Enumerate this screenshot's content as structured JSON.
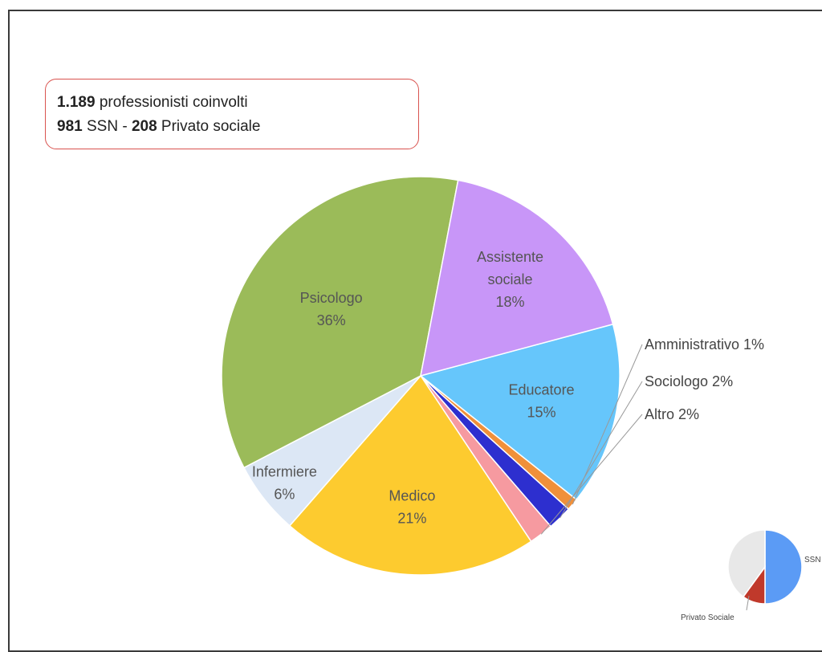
{
  "info": {
    "line1_bold": "1.189",
    "line1_text": " professionisti coinvolti",
    "line2_bold1": "981",
    "line2_text1": " SSN - ",
    "line2_bold2": "208",
    "line2_text2": " Privato sociale"
  },
  "chart_data": [
    {
      "type": "pie",
      "slices": [
        {
          "label": "Educatore",
          "value": 15,
          "value_label": "15%",
          "color": "#66c6fb"
        },
        {
          "label": "Amministrativo",
          "value": 1,
          "value_label": "1%",
          "color": "#f0903a"
        },
        {
          "label": "Sociologo",
          "value": 2,
          "value_label": "2%",
          "color": "#2d2fcf"
        },
        {
          "label": "Altro",
          "value": 2,
          "value_label": "2%",
          "color": "#f69aa0"
        },
        {
          "label": "Medico",
          "value": 21,
          "value_label": "21%",
          "color": "#fdcb2f"
        },
        {
          "label": "Infermiere",
          "value": 6,
          "value_label": "6%",
          "color": "#dce7f5"
        },
        {
          "label": "Psicologo",
          "value": 36,
          "value_label": "36%",
          "color": "#9bbb59"
        },
        {
          "label": "Assistente sociale",
          "value": 18,
          "value_label": "18%",
          "color": "#c896f8"
        }
      ]
    },
    {
      "type": "pie",
      "slices": [
        {
          "label": "SSN",
          "value": 50,
          "color": "#5b9bf5"
        },
        {
          "label": "Privato Sociale",
          "value": 10,
          "color": "#c0392b"
        },
        {
          "label": "",
          "value": 40,
          "color": "#e8e8e8"
        }
      ]
    }
  ]
}
